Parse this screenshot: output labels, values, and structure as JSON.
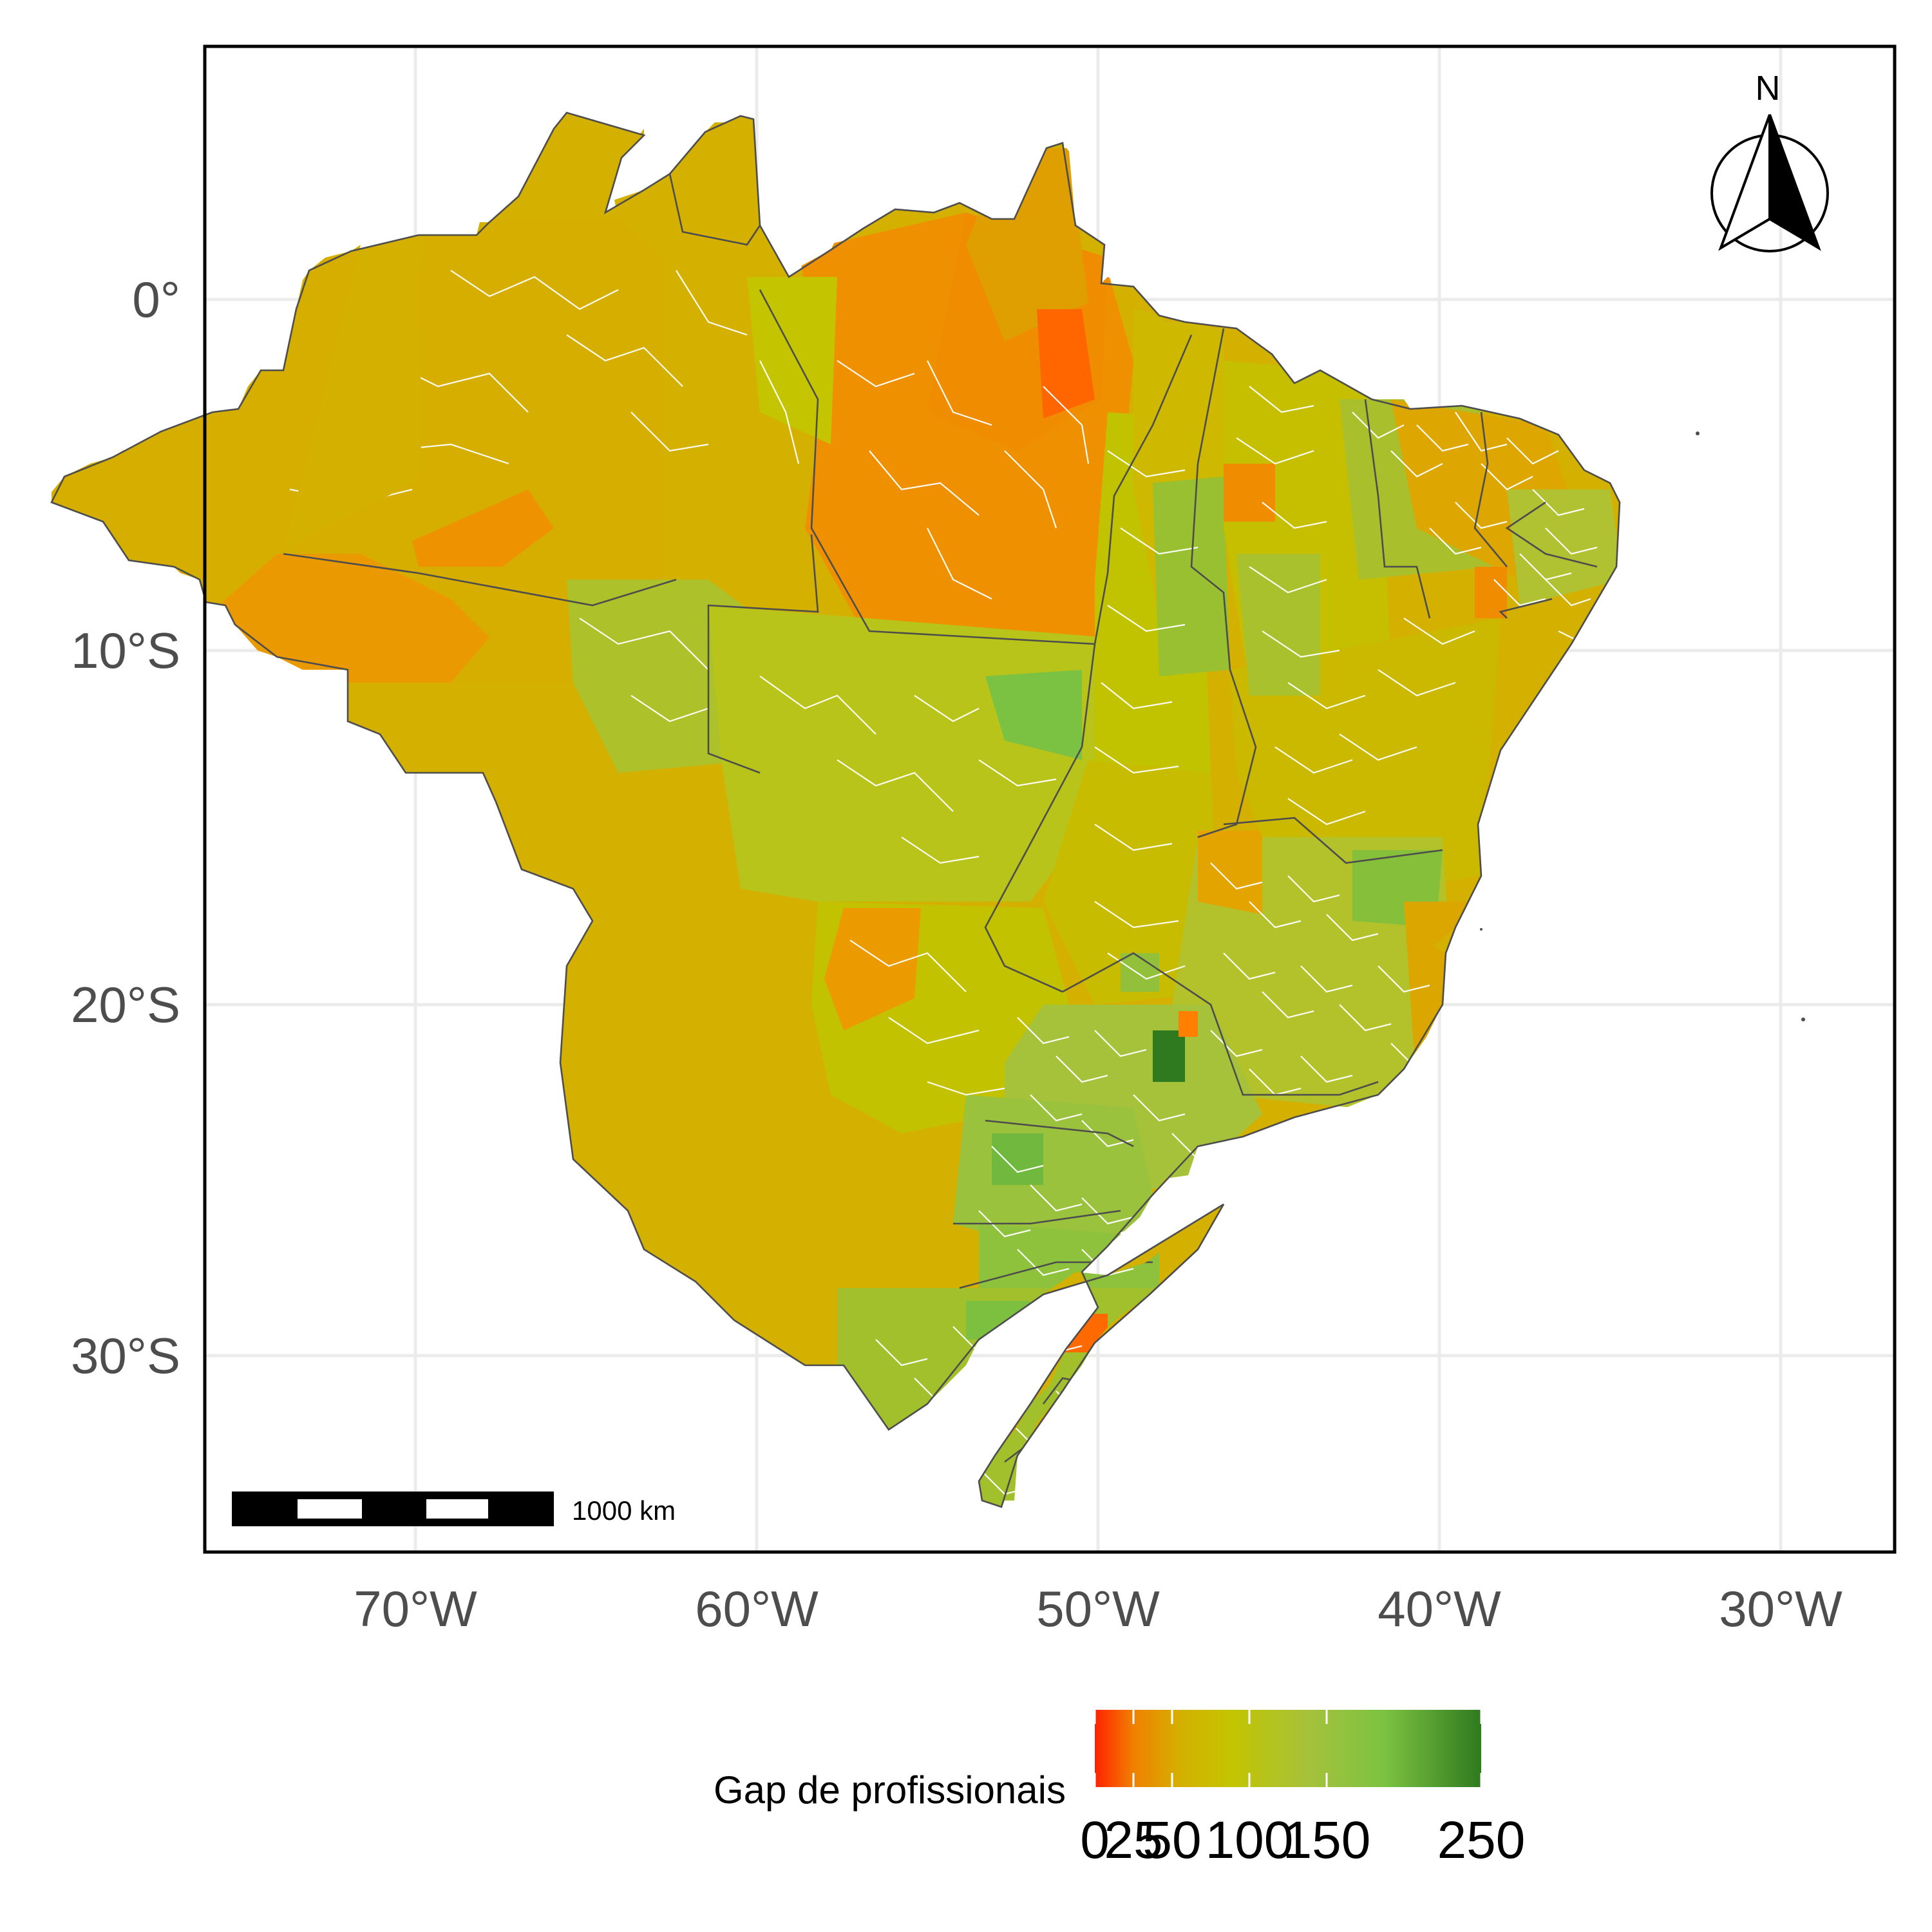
{
  "map": {
    "axes": {
      "x_ticks": [
        "70°W",
        "60°W",
        "50°W",
        "40°W",
        "30°W"
      ],
      "y_ticks": [
        "0°",
        "10°S",
        "20°S",
        "30°S"
      ]
    },
    "scale_bar": {
      "label": "1000 km"
    },
    "north_arrow": {
      "label": "N"
    },
    "legend": {
      "title": "Gap de profissionais",
      "ticks": [
        "0",
        "25",
        "50",
        "100",
        "150",
        "250"
      ],
      "tick_values": [
        0,
        25,
        50,
        100,
        150,
        250
      ],
      "range": [
        0,
        250
      ],
      "colors": [
        "#ff2200",
        "#f08000",
        "#d4b000",
        "#c4c400",
        "#a6c23a",
        "#7cc242",
        "#2f7a1f"
      ]
    },
    "colors": {
      "grid": "#ebebeb",
      "panel_border": "#000000",
      "state_border": "#4d4d4d",
      "municipality_border": "#ffffff"
    }
  }
}
